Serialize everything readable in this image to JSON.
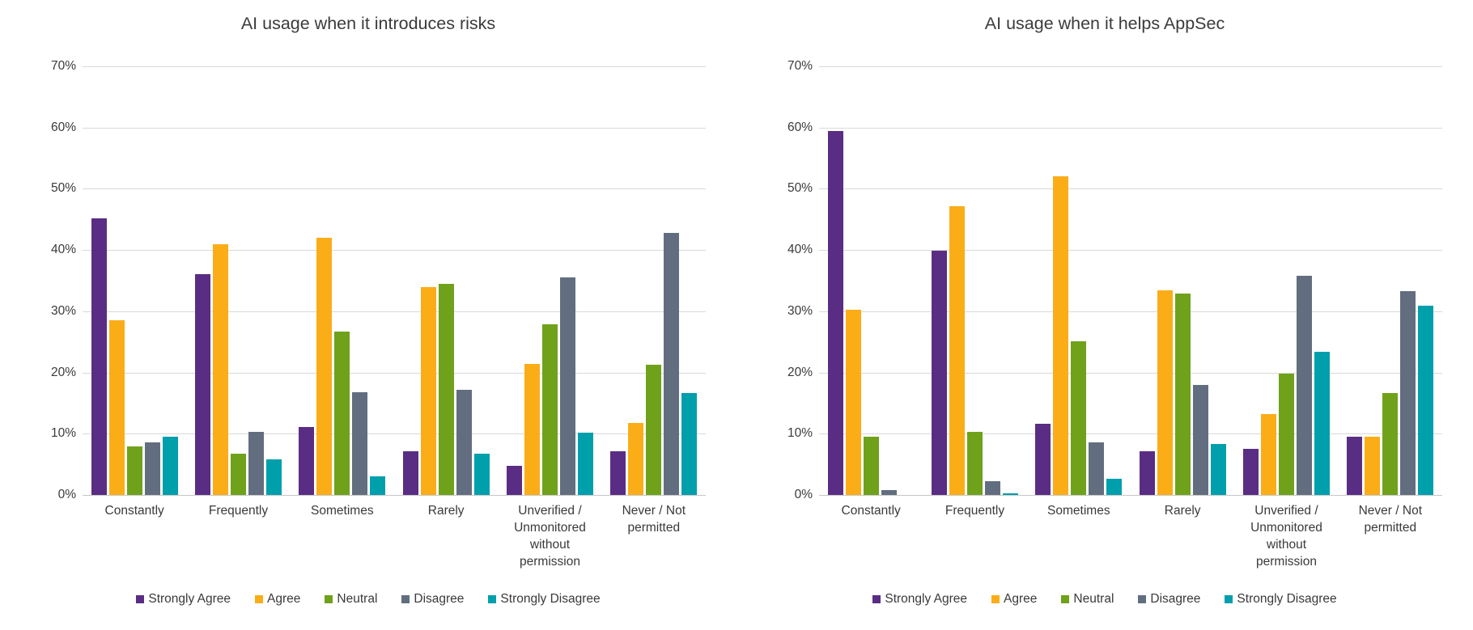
{
  "page": {
    "background": "#ffffff",
    "gridline_color": "#d9d9d9",
    "text_color": "#3a3a3a"
  },
  "chart_data": [
    {
      "type": "bar",
      "title": "AI usage when it introduces risks",
      "categories": [
        "Constantly",
        "Frequently",
        "Sometimes",
        "Rarely",
        "Unverified / Unmonitored without permission",
        "Never / Not permitted"
      ],
      "series": [
        {
          "name": "Strongly Agree",
          "color": "#5a2d84",
          "values": [
            45.2,
            36.1,
            11.1,
            7.2,
            4.7,
            7.1
          ]
        },
        {
          "name": "Agree",
          "color": "#fbad18",
          "values": [
            28.5,
            41.0,
            42.0,
            34.0,
            21.4,
            11.8
          ]
        },
        {
          "name": "Neutral",
          "color": "#6fa21a",
          "values": [
            7.9,
            6.7,
            26.7,
            34.5,
            27.9,
            21.3
          ]
        },
        {
          "name": "Disagree",
          "color": "#626e7f",
          "values": [
            8.6,
            10.3,
            16.8,
            17.2,
            35.5,
            42.8
          ]
        },
        {
          "name": "Strongly Disagree",
          "color": "#009fac",
          "values": [
            9.5,
            5.8,
            3.0,
            6.7,
            10.2,
            16.6
          ]
        }
      ],
      "xlabel": "",
      "ylabel": "",
      "ylim": [
        0,
        70
      ],
      "ytick_labels": [
        "70%",
        "60%",
        "50%",
        "40%",
        "30%",
        "20%",
        "10%",
        "0%"
      ],
      "grid": true,
      "legend_position": "bottom"
    },
    {
      "type": "bar",
      "title": "AI usage when it helps AppSec",
      "categories": [
        "Constantly",
        "Frequently",
        "Sometimes",
        "Rarely",
        "Unverified / Unmonitored without permission",
        "Never / Not permitted"
      ],
      "series": [
        {
          "name": "Strongly Agree",
          "color": "#5a2d84",
          "values": [
            59.5,
            39.9,
            11.6,
            7.2,
            7.5,
            9.5
          ]
        },
        {
          "name": "Agree",
          "color": "#fbad18",
          "values": [
            30.2,
            47.2,
            52.0,
            33.4,
            13.2,
            9.5
          ]
        },
        {
          "name": "Neutral",
          "color": "#6fa21a",
          "values": [
            9.5,
            10.3,
            25.1,
            32.9,
            19.8,
            16.7
          ]
        },
        {
          "name": "Disagree",
          "color": "#626e7f",
          "values": [
            0.8,
            2.2,
            8.6,
            17.9,
            35.8,
            33.3
          ]
        },
        {
          "name": "Strongly Disagree",
          "color": "#009fac",
          "values": [
            0.0,
            0.3,
            2.6,
            8.3,
            23.4,
            30.9
          ]
        }
      ],
      "xlabel": "",
      "ylabel": "",
      "ylim": [
        0,
        70
      ],
      "ytick_labels": [
        "70%",
        "60%",
        "50%",
        "40%",
        "30%",
        "20%",
        "10%",
        "0%"
      ],
      "grid": true,
      "legend_position": "bottom"
    }
  ]
}
